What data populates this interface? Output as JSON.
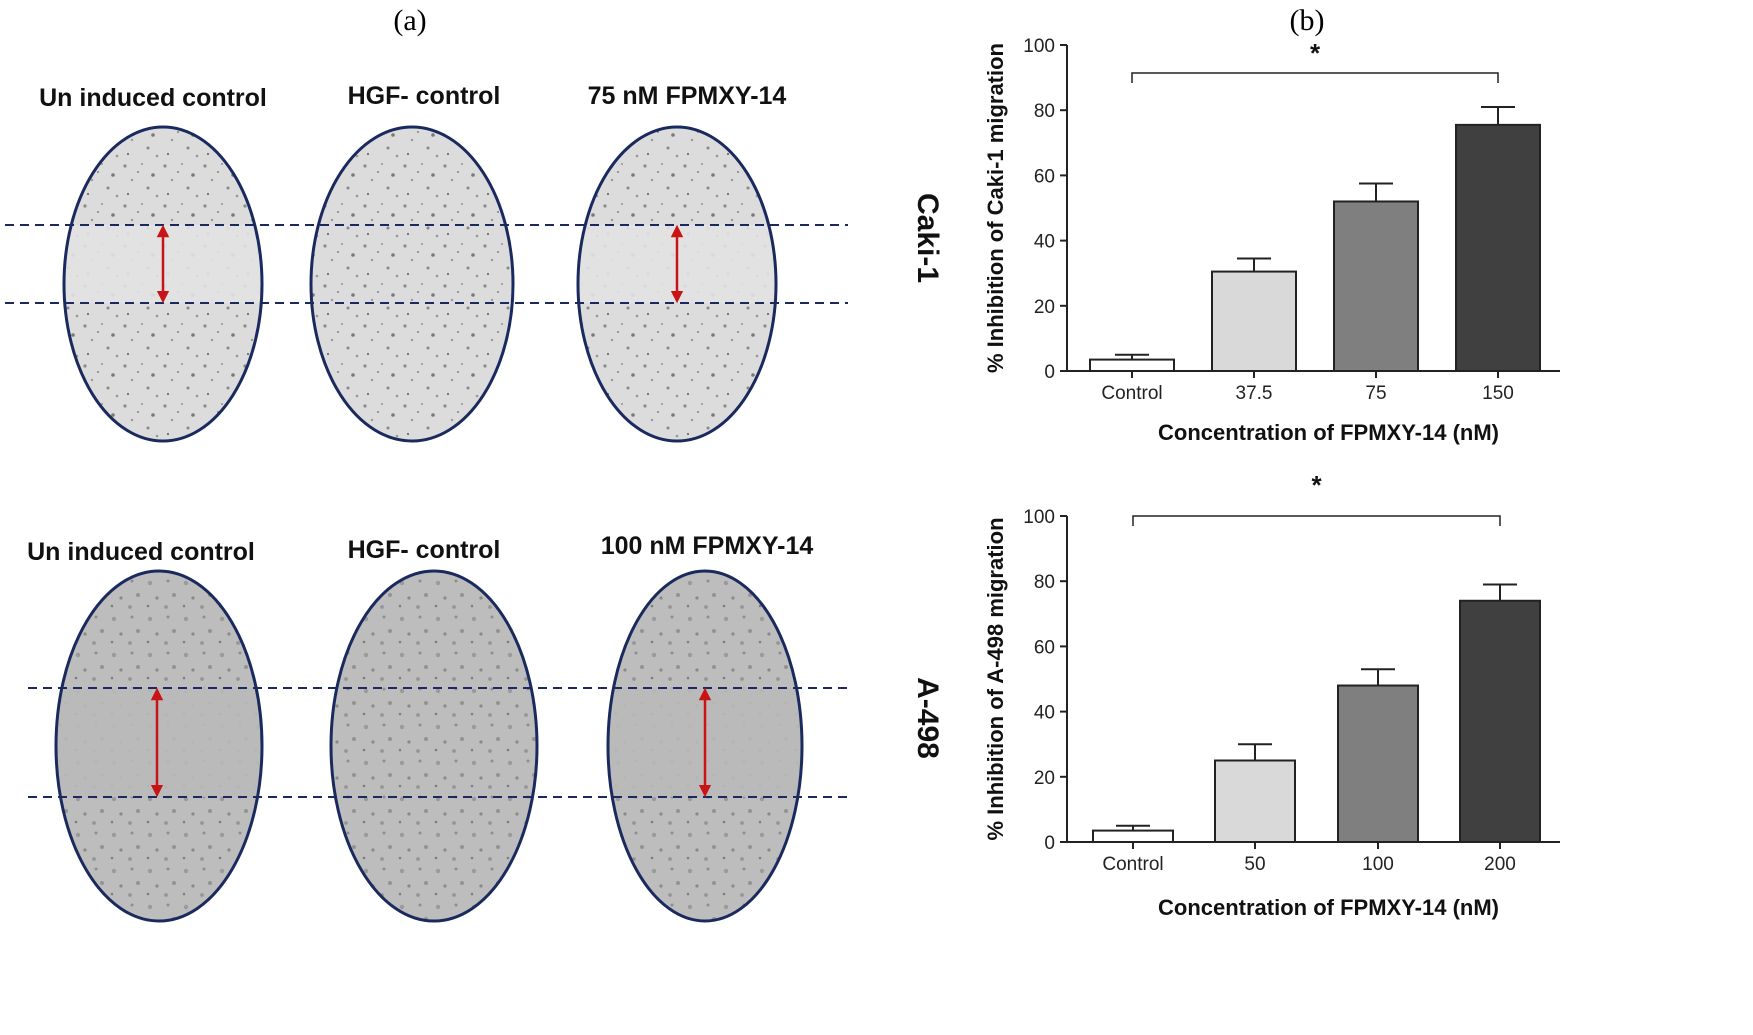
{
  "panels": {
    "a": "(a)",
    "b": "(b)"
  },
  "well_titles": {
    "caki_row": [
      "Un induced control",
      "HGF- control",
      "75 nM FPMXY-14"
    ],
    "a498_row": [
      "Un induced control",
      "HGF- control",
      "100 nM FPMXY-14"
    ]
  },
  "side_labels": {
    "caki": "Caki-1",
    "a498": "A-498"
  },
  "colors": {
    "well_outline": "#1b2a5e",
    "scratch_arrow": "#c81414",
    "dashed_line": "#1b2a5e",
    "bars": [
      "#ffffff",
      "#d9d9d9",
      "#7f7f7f",
      "#404040"
    ]
  },
  "chart_data": [
    {
      "type": "bar",
      "title": "",
      "categories": [
        "Control",
        "37.5",
        "75",
        "150"
      ],
      "values": [
        3.5,
        30.5,
        52,
        75.5
      ],
      "errors": [
        1.5,
        4,
        5.5,
        5.5
      ],
      "xlabel": "Concentration of FPMXY-14 (nM)",
      "ylabel": "% Inhibition of Caki-1 migration",
      "ylim": [
        0,
        100
      ],
      "yticks": [
        "0",
        "20",
        "40",
        "60",
        "80",
        "100"
      ],
      "annotation": "*",
      "grid": false
    },
    {
      "type": "bar",
      "title": "",
      "categories": [
        "Control",
        "50",
        "100",
        "200"
      ],
      "values": [
        3.5,
        25,
        48,
        74
      ],
      "errors": [
        1.5,
        5,
        5,
        5
      ],
      "xlabel": "Concentration of FPMXY-14 (nM)",
      "ylabel": "% Inhibition of A-498 migration",
      "ylim": [
        0,
        100
      ],
      "yticks": [
        "0",
        "20",
        "40",
        "60",
        "80",
        "100"
      ],
      "annotation": "*",
      "grid": false
    }
  ]
}
